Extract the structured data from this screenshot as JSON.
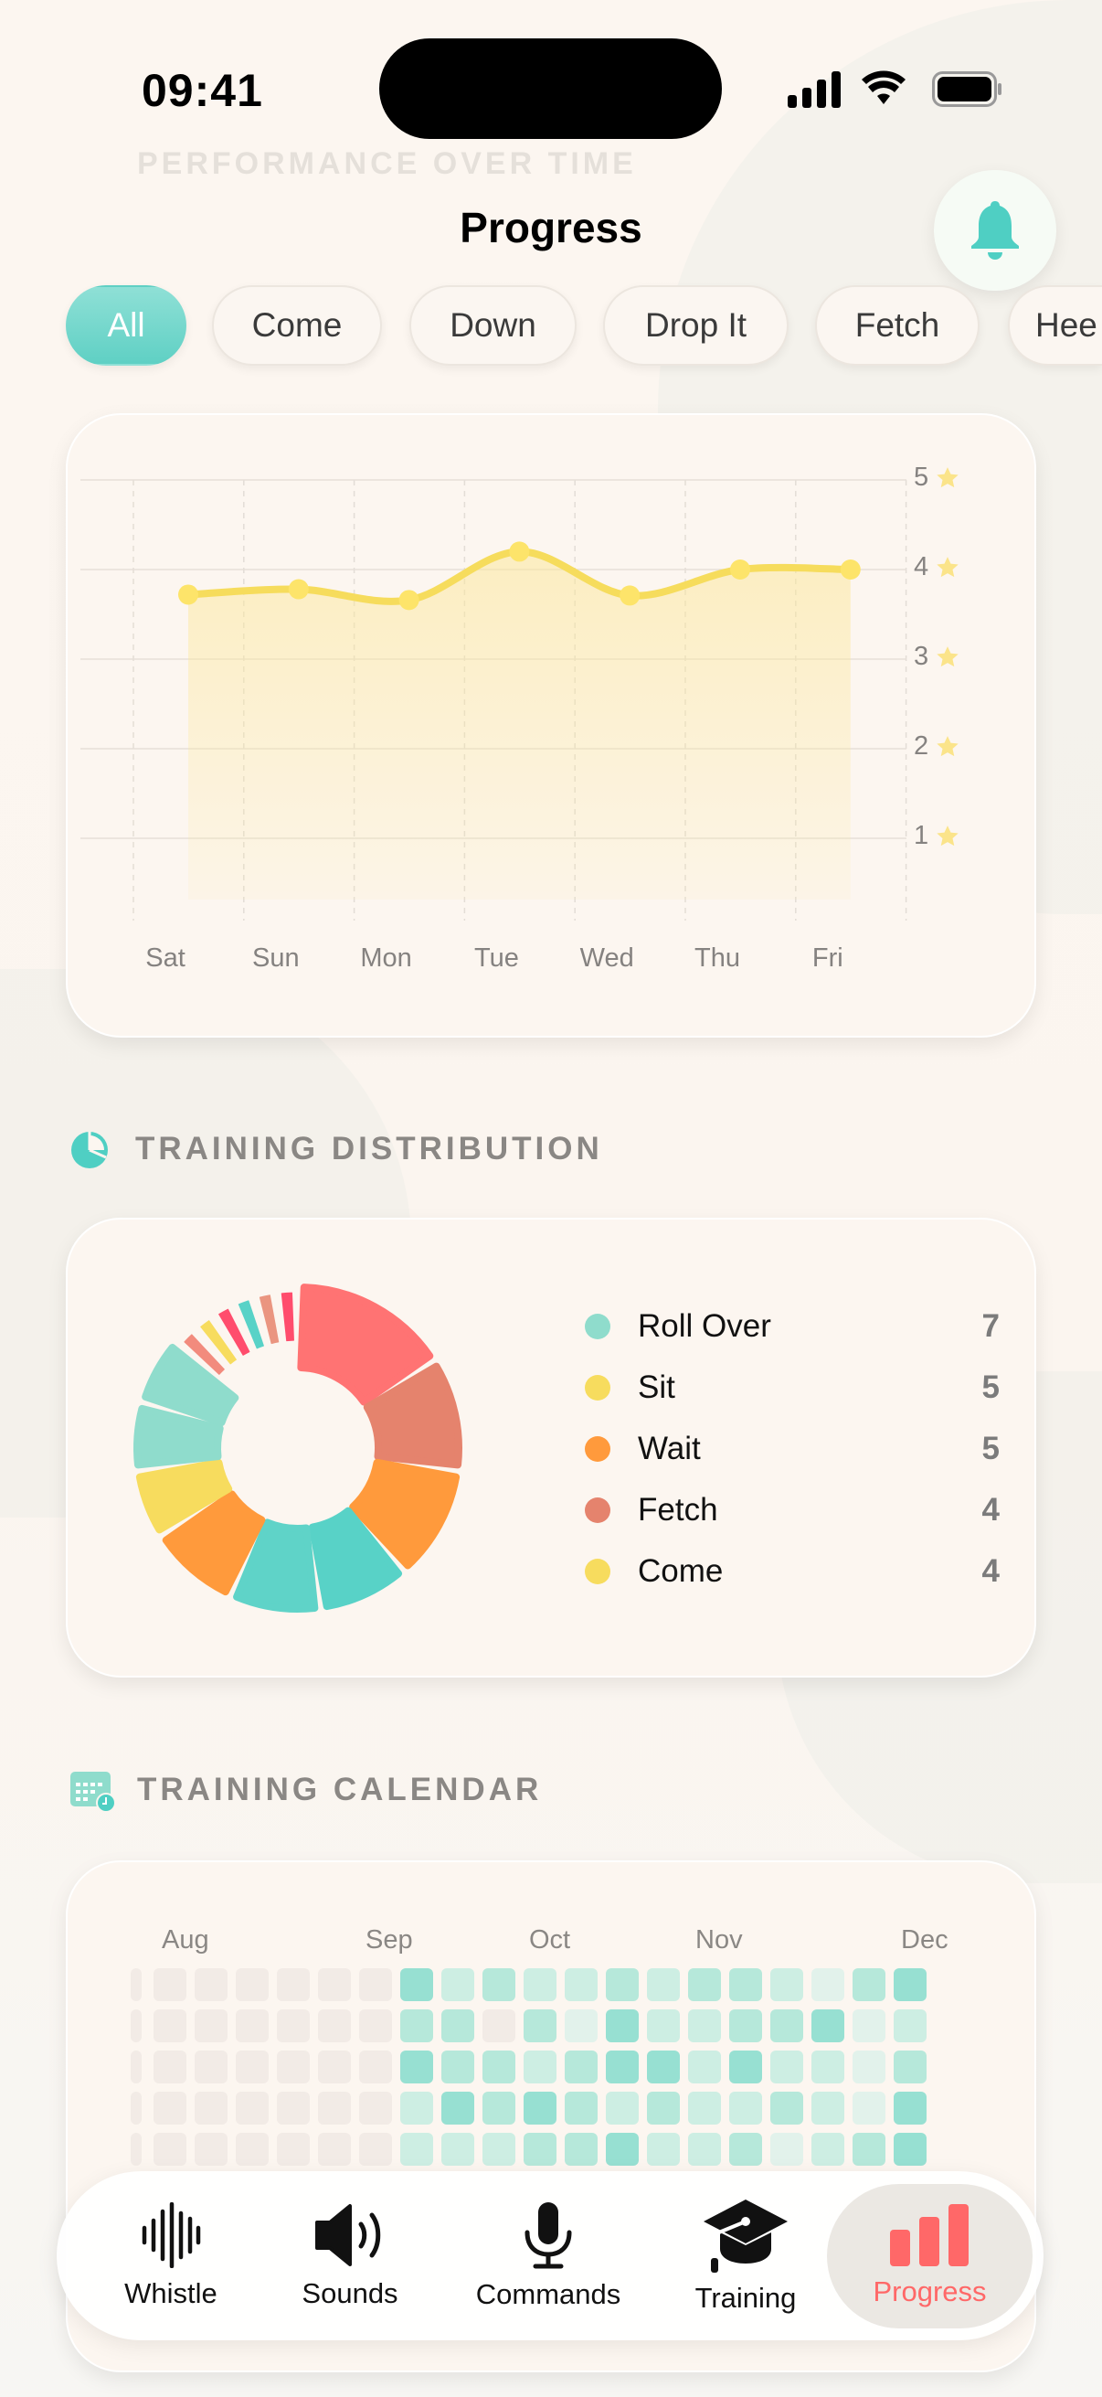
{
  "status_bar": {
    "time": "09:41"
  },
  "header": {
    "title": "Progress",
    "ghost_section": "PERFORMANCE OVER TIME"
  },
  "filters": {
    "chips": [
      "All",
      "Come",
      "Down",
      "Drop It",
      "Fetch",
      "Hee"
    ],
    "active": "All"
  },
  "colors": {
    "accent": "#5fd0c4",
    "active_tab": "#ff6868",
    "line": "#f6dc5c"
  },
  "chart_data": [
    {
      "type": "area",
      "categories": [
        "Sat",
        "Sun",
        "Mon",
        "Tue",
        "Wed",
        "Thu",
        "Fri"
      ],
      "values": [
        3.72,
        3.78,
        3.66,
        4.2,
        3.71,
        4.0,
        4.0
      ],
      "ylim": [
        0,
        5
      ],
      "y_ticks": [
        "1",
        "2",
        "3",
        "4",
        "5"
      ],
      "y_tick_icon": "star-icon",
      "grid": true,
      "color": "#f6dc5c"
    },
    {
      "type": "pie",
      "slices": [
        {
          "value": 7,
          "color": "#ff7373"
        },
        {
          "value": 5,
          "color": "#e5836d"
        },
        {
          "value": 5,
          "color": "#ff9a3c"
        },
        {
          "value": 4,
          "color": "#58d2c7"
        },
        {
          "value": 4,
          "color": "#5fd3c8"
        },
        {
          "value": 4,
          "color": "#ff9a3c"
        },
        {
          "value": 3,
          "color": "#f7dc5e"
        },
        {
          "value": 3,
          "color": "#8fdccc"
        },
        {
          "value": 3,
          "color": "#8fdccc"
        },
        {
          "value": 1,
          "color": "#f28b7d"
        },
        {
          "value": 1,
          "color": "#f7dc5e"
        },
        {
          "value": 1,
          "color": "#ff4d6d"
        },
        {
          "value": 1,
          "color": "#58d2c7"
        },
        {
          "value": 1,
          "color": "#ea9580"
        },
        {
          "value": 1,
          "color": "#ff4d6d"
        }
      ],
      "legend": [
        {
          "label": "Roll Over",
          "value": "7",
          "color": "#8fdccc"
        },
        {
          "label": "Sit",
          "value": "5",
          "color": "#f7dc5e"
        },
        {
          "label": "Wait",
          "value": "5",
          "color": "#ff9a3c"
        },
        {
          "label": "Fetch",
          "value": "4",
          "color": "#e5836d"
        },
        {
          "label": "Come",
          "value": "4",
          "color": "#f7dc5e"
        }
      ]
    },
    {
      "type": "heatmap",
      "months": [
        "Aug",
        "Sep",
        "Oct",
        "Nov",
        "Dec"
      ],
      "rows": [
        [
          0,
          0,
          0,
          0,
          0,
          0,
          4,
          2,
          3,
          2,
          2,
          3,
          2,
          3,
          3,
          2,
          1,
          3,
          4
        ],
        [
          0,
          0,
          0,
          0,
          0,
          0,
          3,
          3,
          0,
          3,
          1,
          4,
          2,
          2,
          3,
          3,
          4,
          1,
          2
        ],
        [
          0,
          0,
          0,
          0,
          0,
          0,
          4,
          3,
          3,
          2,
          3,
          4,
          4,
          2,
          4,
          2,
          2,
          1,
          3
        ],
        [
          0,
          0,
          0,
          0,
          0,
          0,
          2,
          4,
          3,
          4,
          3,
          2,
          3,
          2,
          2,
          3,
          2,
          1,
          4
        ],
        [
          0,
          0,
          0,
          0,
          0,
          0,
          2,
          2,
          2,
          3,
          3,
          4,
          2,
          2,
          3,
          1,
          2,
          3,
          4
        ]
      ],
      "level_colors": [
        "#f2ebe6",
        "#e2f2eb",
        "#cdeee3",
        "#b6e8da",
        "#97e0d2"
      ]
    }
  ],
  "sections": {
    "distribution": "TRAINING DISTRIBUTION",
    "calendar": "TRAINING CALENDAR"
  },
  "tabs": [
    {
      "label": "Whistle",
      "icon": "waveform-icon"
    },
    {
      "label": "Sounds",
      "icon": "speaker-icon"
    },
    {
      "label": "Commands",
      "icon": "microphone-icon"
    },
    {
      "label": "Training",
      "icon": "graduation-cap-icon"
    },
    {
      "label": "Progress",
      "icon": "bar-chart-icon",
      "active": true
    }
  ]
}
